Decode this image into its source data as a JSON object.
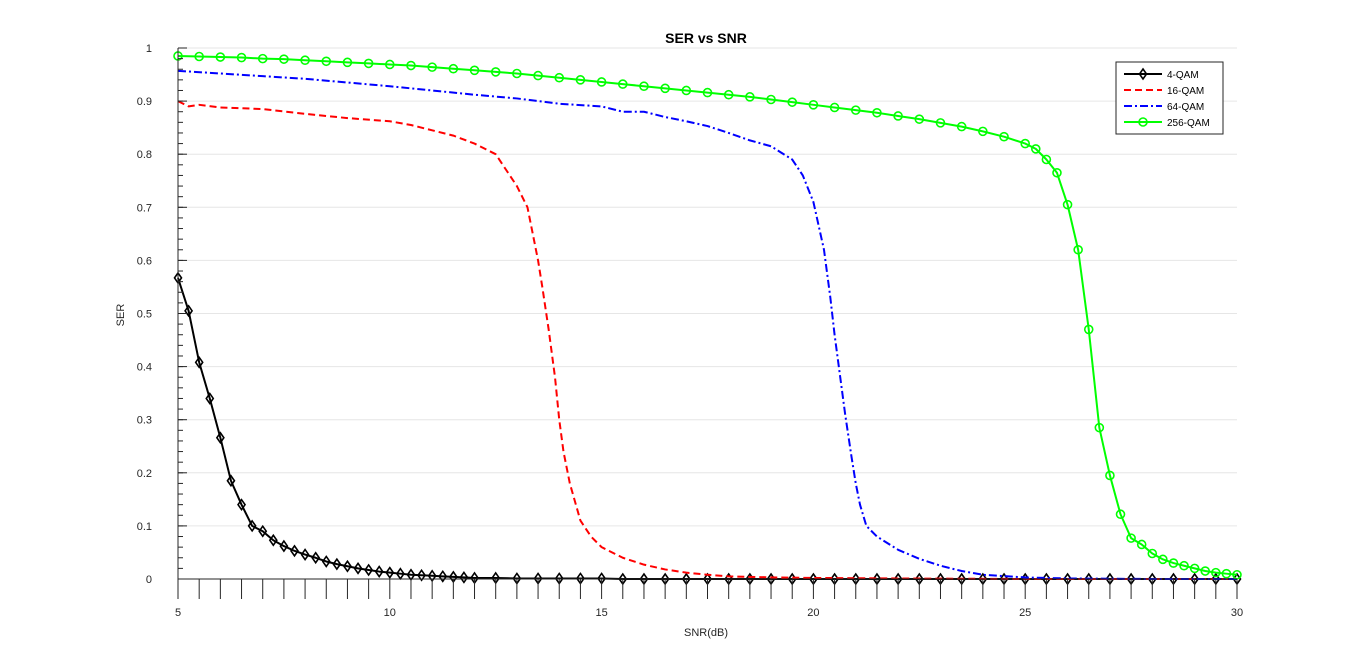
{
  "chart_data": {
    "type": "line",
    "title": "SER vs SNR",
    "xlabel": "SNR(dB)",
    "ylabel": "SER",
    "xlim": [
      5,
      30
    ],
    "ylim": [
      0,
      1
    ],
    "xticks": [
      "5",
      "10",
      "15",
      "20",
      "25",
      "30"
    ],
    "yticks": [
      "0",
      "0.1",
      "0.2",
      "0.3",
      "0.4",
      "0.5",
      "0.6",
      "0.7",
      "0.8",
      "0.9",
      "1"
    ],
    "grid": "horizontal",
    "legend_position": "top-right",
    "series": [
      {
        "name": "4-QAM",
        "color": "#000000",
        "style": "solid",
        "marker": "diamond",
        "x": [
          5.0,
          5.25,
          5.5,
          5.75,
          6.0,
          6.25,
          6.5,
          6.75,
          7.0,
          7.25,
          7.5,
          7.75,
          8.0,
          8.25,
          8.5,
          8.75,
          9.0,
          9.25,
          9.5,
          9.75,
          10.0,
          10.25,
          10.5,
          10.75,
          11.0,
          11.25,
          11.5,
          11.75,
          12.0,
          12.5,
          13.0,
          13.5,
          14.0,
          14.5,
          15.0,
          15.5,
          16.0,
          16.5,
          17.0,
          17.5,
          18.0,
          18.5,
          19.0,
          19.5,
          20.0,
          20.5,
          21.0,
          21.5,
          22.0,
          22.5,
          23.0,
          23.5,
          24.0,
          24.5,
          25.0,
          25.5,
          26.0,
          26.5,
          27.0,
          27.5,
          28.0,
          28.5,
          29.0,
          29.5,
          30.0
        ],
        "y": [
          0.567,
          0.505,
          0.408,
          0.34,
          0.266,
          0.185,
          0.14,
          0.1,
          0.09,
          0.073,
          0.062,
          0.053,
          0.046,
          0.04,
          0.033,
          0.028,
          0.024,
          0.02,
          0.017,
          0.014,
          0.012,
          0.01,
          0.008,
          0.007,
          0.006,
          0.005,
          0.004,
          0.003,
          0.002,
          0.002,
          0.001,
          0.001,
          0.001,
          0.001,
          0.001,
          0.0,
          0.0,
          0.0,
          0.0,
          0.0,
          0.0,
          0.0,
          0.0,
          0.0,
          0.0,
          0.0,
          0.0,
          0.0,
          0.0,
          0.0,
          0.0,
          0.0,
          0.0,
          0.0,
          0.0,
          0.0,
          0.0,
          0.0,
          0.0,
          0.0,
          0.0,
          0.0,
          0.0,
          0.0,
          0.0
        ]
      },
      {
        "name": "16-QAM",
        "color": "#ff0000",
        "style": "dashed",
        "marker": "none",
        "x": [
          5.0,
          5.25,
          5.5,
          6.0,
          7.0,
          8.0,
          9.0,
          10.0,
          10.5,
          11.0,
          11.5,
          12.0,
          12.5,
          12.75,
          13.0,
          13.25,
          13.5,
          13.6,
          13.75,
          13.9,
          14.0,
          14.1,
          14.25,
          14.5,
          14.75,
          15.0,
          15.5,
          16.0,
          16.5,
          17.0,
          17.5,
          18.0,
          19.0,
          20.0,
          22.0,
          25.0,
          30.0
        ],
        "y": [
          0.9,
          0.89,
          0.893,
          0.888,
          0.885,
          0.876,
          0.868,
          0.862,
          0.855,
          0.845,
          0.835,
          0.82,
          0.8,
          0.77,
          0.74,
          0.7,
          0.6,
          0.55,
          0.47,
          0.38,
          0.3,
          0.24,
          0.18,
          0.11,
          0.08,
          0.06,
          0.04,
          0.027,
          0.018,
          0.012,
          0.008,
          0.005,
          0.003,
          0.002,
          0.001,
          0.0,
          0.0
        ]
      },
      {
        "name": "64-QAM",
        "color": "#0000ff",
        "style": "dashdot",
        "marker": "none",
        "x": [
          5.0,
          6.0,
          7.0,
          8.0,
          9.0,
          10.0,
          11.0,
          12.0,
          13.0,
          14.0,
          15.0,
          15.5,
          16.0,
          16.5,
          17.0,
          17.5,
          18.0,
          18.5,
          19.0,
          19.5,
          19.75,
          20.0,
          20.25,
          20.4,
          20.5,
          20.6,
          20.75,
          20.9,
          21.0,
          21.1,
          21.25,
          21.5,
          22.0,
          22.5,
          23.0,
          23.5,
          24.0,
          25.0,
          26.0,
          28.0,
          30.0
        ],
        "y": [
          0.957,
          0.952,
          0.947,
          0.942,
          0.935,
          0.928,
          0.92,
          0.912,
          0.905,
          0.895,
          0.89,
          0.88,
          0.88,
          0.87,
          0.862,
          0.853,
          0.84,
          0.826,
          0.815,
          0.79,
          0.76,
          0.71,
          0.62,
          0.53,
          0.46,
          0.4,
          0.31,
          0.23,
          0.18,
          0.14,
          0.1,
          0.08,
          0.055,
          0.038,
          0.025,
          0.015,
          0.008,
          0.003,
          0.001,
          0.0,
          0.0
        ]
      },
      {
        "name": "256-QAM",
        "color": "#00ff00",
        "style": "solid",
        "marker": "circle",
        "x": [
          5.0,
          5.5,
          6.0,
          6.5,
          7.0,
          7.5,
          8.0,
          8.5,
          9.0,
          9.5,
          10.0,
          10.5,
          11.0,
          11.5,
          12.0,
          12.5,
          13.0,
          13.5,
          14.0,
          14.5,
          15.0,
          15.5,
          16.0,
          16.5,
          17.0,
          17.5,
          18.0,
          18.5,
          19.0,
          19.5,
          20.0,
          20.5,
          21.0,
          21.5,
          22.0,
          22.5,
          23.0,
          23.5,
          24.0,
          24.5,
          25.0,
          25.25,
          25.5,
          25.75,
          26.0,
          26.25,
          26.5,
          26.75,
          27.0,
          27.25,
          27.5,
          27.75,
          28.0,
          28.25,
          28.5,
          28.75,
          29.0,
          29.25,
          29.5,
          29.75,
          30.0
        ],
        "y": [
          0.985,
          0.984,
          0.983,
          0.982,
          0.98,
          0.979,
          0.977,
          0.975,
          0.973,
          0.971,
          0.969,
          0.967,
          0.964,
          0.961,
          0.958,
          0.955,
          0.952,
          0.948,
          0.944,
          0.94,
          0.936,
          0.932,
          0.928,
          0.924,
          0.92,
          0.916,
          0.912,
          0.908,
          0.903,
          0.898,
          0.893,
          0.888,
          0.883,
          0.878,
          0.872,
          0.866,
          0.859,
          0.852,
          0.843,
          0.833,
          0.82,
          0.81,
          0.79,
          0.765,
          0.705,
          0.62,
          0.47,
          0.285,
          0.195,
          0.122,
          0.077,
          0.065,
          0.048,
          0.037,
          0.03,
          0.025,
          0.02,
          0.015,
          0.012,
          0.01,
          0.008
        ]
      }
    ]
  }
}
